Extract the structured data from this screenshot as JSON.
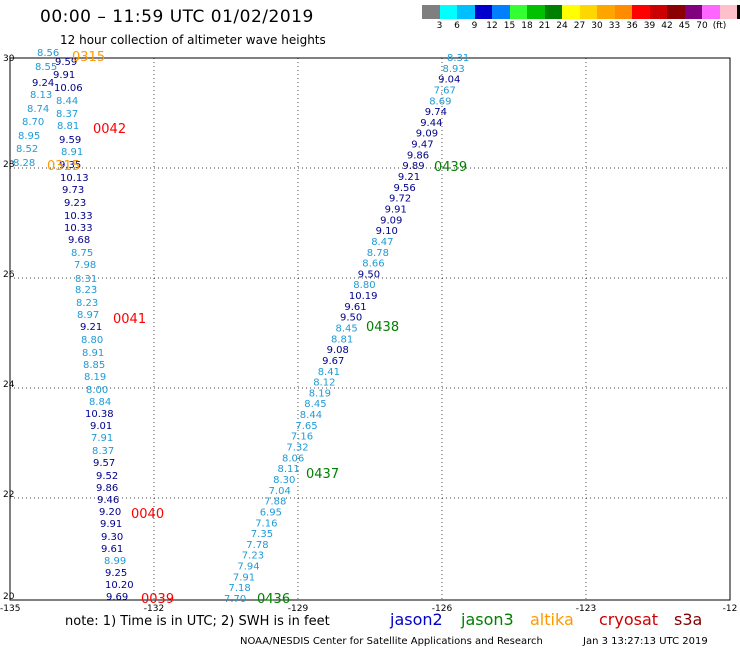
{
  "header": {
    "title": "00:00 – 11:59 UTC 01/02/2019",
    "subtitle": "12 hour collection of altimeter wave heights"
  },
  "colorbar": {
    "colors": [
      "#7f7f7f",
      "#00ffff",
      "#00bfff",
      "#0000cd",
      "#0080ff",
      "#33ff33",
      "#00c000",
      "#008000",
      "#ffff00",
      "#ffd700",
      "#ffa500",
      "#ff8c00",
      "#ff0000",
      "#cc0000",
      "#8b0000",
      "#800080",
      "#ff66ff",
      "#ffc0cb",
      "#000000"
    ],
    "labels": [
      "3",
      "6",
      "9",
      "12",
      "15",
      "18",
      "21",
      "24",
      "27",
      "30",
      "33",
      "36",
      "39",
      "42",
      "45",
      "70",
      "(ft)"
    ]
  },
  "map": {
    "x_ticks": [
      "-135",
      "-132",
      "-129",
      "-126",
      "-123",
      "-12"
    ],
    "y_ticks": [
      "30",
      "28",
      "26",
      "24",
      "22",
      "20"
    ],
    "track_colors": {
      "dark": "#00008b",
      "light": "#1e9bd7"
    },
    "tracks": [
      {
        "name": "west",
        "values": [
          "8.56",
          "9.59",
          "8.55",
          "9.91",
          "9.24",
          "10.06",
          "8.13",
          "8.44",
          "8.74",
          "8.37",
          "8.70",
          "8.81",
          "8.95",
          "9.59",
          "8.52",
          "8.91",
          "8.28",
          "9.35",
          "10.13",
          "9.73",
          "9.23",
          "10.33",
          "10.33",
          "9.68",
          "8.75",
          "7.98",
          "8.31",
          "8.23",
          "8.23",
          "8.97",
          "9.21",
          "8.80",
          "8.91",
          "8.85",
          "8.19",
          "8.00",
          "8.84",
          "10.38",
          "9.01",
          "7.91",
          "8.37",
          "9.57",
          "9.52",
          "9.86",
          "9.46",
          "9.20",
          "9.91",
          "9.30",
          "9.61",
          "8.99",
          "9.25",
          "10.20",
          "9.69"
        ]
      },
      {
        "name": "east",
        "values": [
          "8.31",
          "8.93",
          "9.04",
          "7.67",
          "8.69",
          "9.74",
          "9.44",
          "9.09",
          "9.47",
          "9.86",
          "9.89",
          "9.21",
          "9.56",
          "9.72",
          "9.91",
          "9.09",
          "9.10",
          "8.47",
          "8.78",
          "8.66",
          "9.50",
          "8.80",
          "10.19",
          "9.61",
          "9.50",
          "8.45",
          "8.81",
          "9.08",
          "9.67",
          "8.41",
          "8.12",
          "8.19",
          "8.45",
          "8.44",
          "7.65",
          "7.16",
          "7.32",
          "8.06",
          "8.11",
          "8.30",
          "7.04",
          "7.88",
          "6.95",
          "7.16",
          "7.35",
          "7.78",
          "7.23",
          "7.94",
          "7.91",
          "7.18",
          "7.70"
        ]
      }
    ],
    "time_labels": [
      {
        "text": "0315",
        "color": "#ff9900"
      },
      {
        "text": "0042",
        "color": "#ff0000"
      },
      {
        "text": "0315",
        "color": "#ff9900"
      },
      {
        "text": "0041",
        "color": "#ff0000"
      },
      {
        "text": "0040",
        "color": "#ff0000"
      },
      {
        "text": "0039",
        "color": "#ff0000"
      },
      {
        "text": "0439",
        "color": "#008000"
      },
      {
        "text": "0438",
        "color": "#008000"
      },
      {
        "text": "0437",
        "color": "#008000"
      },
      {
        "text": "0436",
        "color": "#008000"
      }
    ]
  },
  "footer": {
    "note": "note:  1) Time is in UTC;  2) SWH is in feet",
    "legend": [
      {
        "text": "jason2",
        "color": "#0000cc"
      },
      {
        "text": "jason3",
        "color": "#008000"
      },
      {
        "text": "altika",
        "color": "#ff9900"
      },
      {
        "text": "cryosat",
        "color": "#cc0000"
      },
      {
        "text": "s3a",
        "color": "#800000"
      }
    ],
    "credit": "NOAA/NESDIS Center for Satellite Applications and Research",
    "timestamp": "Jan  3 13:27:13 UTC 2019"
  }
}
